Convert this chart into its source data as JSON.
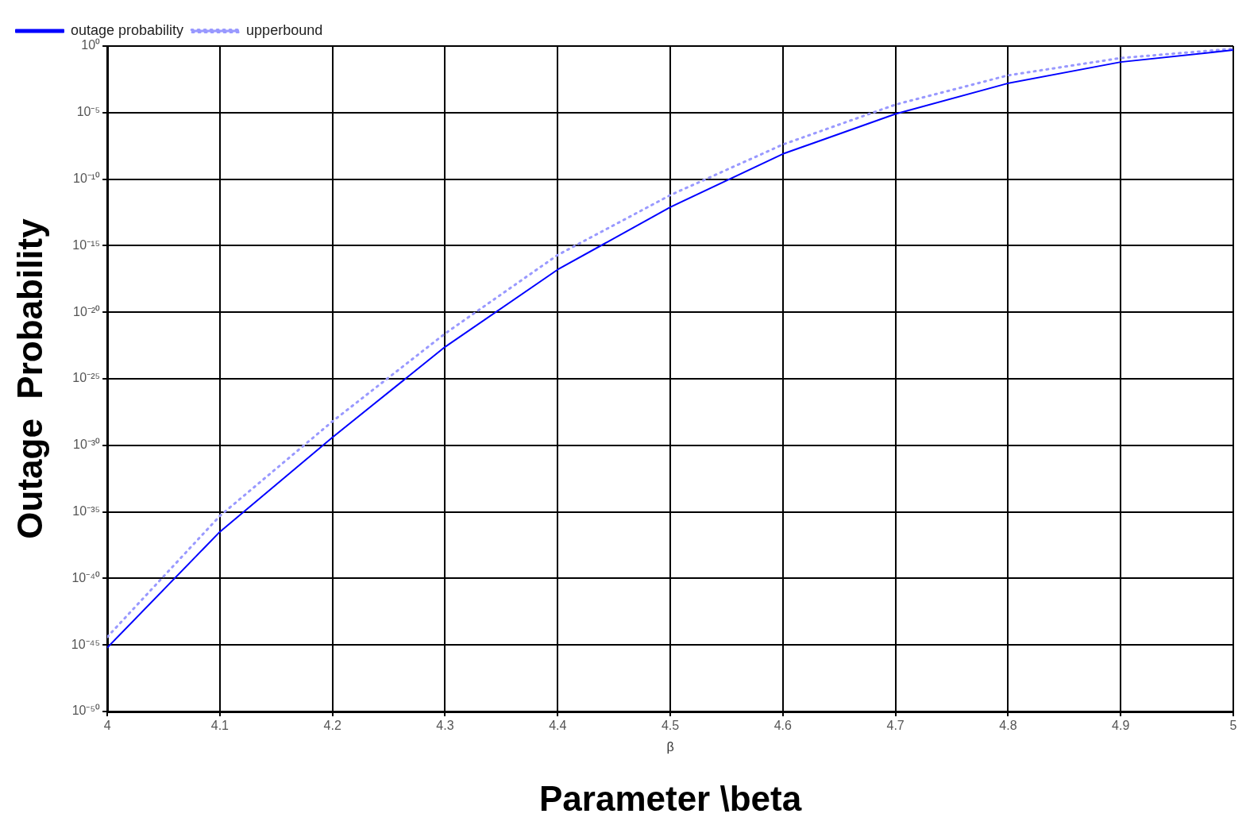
{
  "chart_data": {
    "type": "line",
    "xlabel": "Parameter \\beta",
    "ylabel": "Outage  Probability",
    "annotations": [
      "β"
    ],
    "x": [
      4,
      4.1,
      4.2,
      4.3,
      4.4,
      4.5,
      4.6,
      4.7,
      4.8,
      4.9,
      5
    ],
    "series": [
      {
        "name": "outage probability",
        "color": "#0000ff",
        "line_style": "solid",
        "marker": "none",
        "values": [
          6.3e-46,
          3.2e-37,
          4e-30,
          2.5e-23,
          1.6e-17,
          7.9e-13,
          7.9e-09,
          7.9e-06,
          0.0016,
          0.063,
          0.5
        ]
      },
      {
        "name": "upperbound",
        "color": "#9999ff",
        "line_style": "dotted",
        "marker": "none",
        "values": [
          4e-45,
          5e-36,
          6.3e-29,
          2.5e-22,
          2e-16,
          6.3e-12,
          4e-08,
          4e-05,
          0.0063,
          0.126,
          0.63
        ]
      }
    ],
    "xlim": [
      4,
      5
    ],
    "xticks": [
      4,
      4.1,
      4.2,
      4.3,
      4.4,
      4.5,
      4.6,
      4.7,
      4.8,
      4.9,
      5
    ],
    "ylim": [
      1e-50,
      1
    ],
    "yticks": [
      {
        "value": 1,
        "label": "10⁰"
      },
      {
        "value": 1e-05,
        "label": "10⁻⁵"
      },
      {
        "value": 1e-10,
        "label": "10⁻¹⁰"
      },
      {
        "value": 1e-15,
        "label": "10⁻¹⁵"
      },
      {
        "value": 1e-20,
        "label": "10⁻²⁰"
      },
      {
        "value": 1e-25,
        "label": "10⁻²⁵"
      },
      {
        "value": 1e-30,
        "label": "10⁻³⁰"
      },
      {
        "value": 1e-35,
        "label": "10⁻³⁵"
      },
      {
        "value": 1e-40,
        "label": "10⁻⁴⁰"
      },
      {
        "value": 1e-45,
        "label": "10⁻⁴⁵"
      },
      {
        "value": 1e-50,
        "label": "10⁻⁵⁰"
      }
    ],
    "log": "y",
    "grid": true,
    "legend": "top left"
  }
}
